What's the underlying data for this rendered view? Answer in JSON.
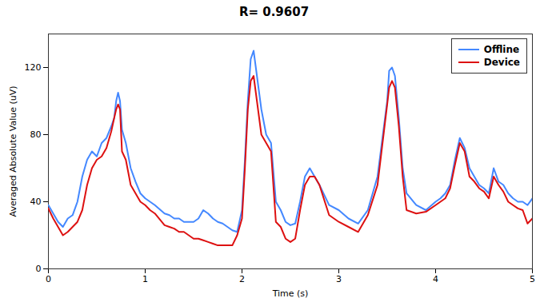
{
  "chart_data": {
    "type": "line",
    "title": "R= 0.9607",
    "xlabel": "Time (s)",
    "ylabel": "Averaged Absolute Value (uV)",
    "xlim": [
      0,
      5
    ],
    "ylim": [
      0,
      140
    ],
    "xticks": [
      0,
      1,
      2,
      3,
      4,
      5
    ],
    "yticks": [
      0,
      40,
      80,
      120
    ],
    "legend": "upper right",
    "x": [
      0.0,
      0.05,
      0.1,
      0.15,
      0.2,
      0.25,
      0.3,
      0.35,
      0.4,
      0.45,
      0.5,
      0.55,
      0.6,
      0.65,
      0.68,
      0.7,
      0.72,
      0.74,
      0.76,
      0.8,
      0.85,
      0.9,
      0.95,
      1.0,
      1.05,
      1.1,
      1.2,
      1.25,
      1.3,
      1.35,
      1.4,
      1.45,
      1.5,
      1.55,
      1.6,
      1.65,
      1.7,
      1.75,
      1.8,
      1.85,
      1.9,
      1.95,
      2.0,
      2.03,
      2.06,
      2.09,
      2.12,
      2.2,
      2.25,
      2.3,
      2.35,
      2.4,
      2.45,
      2.5,
      2.55,
      2.6,
      2.65,
      2.7,
      2.75,
      2.8,
      2.9,
      3.0,
      3.1,
      3.2,
      3.3,
      3.4,
      3.5,
      3.52,
      3.55,
      3.58,
      3.62,
      3.66,
      3.7,
      3.8,
      3.9,
      4.0,
      4.05,
      4.1,
      4.15,
      4.2,
      4.25,
      4.3,
      4.35,
      4.4,
      4.45,
      4.5,
      4.55,
      4.6,
      4.65,
      4.7,
      4.75,
      4.8,
      4.85,
      4.9,
      4.95,
      5.0
    ],
    "series": [
      {
        "name": "Offline",
        "color": "#4488FF",
        "values": [
          38,
          33,
          28,
          25,
          30,
          32,
          40,
          55,
          65,
          70,
          67,
          75,
          78,
          85,
          90,
          100,
          105,
          100,
          83,
          75,
          60,
          52,
          45,
          42,
          40,
          38,
          33,
          32,
          30,
          30,
          28,
          28,
          28,
          30,
          35,
          33,
          30,
          28,
          27,
          25,
          23,
          22,
          35,
          65,
          100,
          125,
          130,
          95,
          80,
          75,
          40,
          35,
          28,
          26,
          27,
          40,
          55,
          60,
          55,
          50,
          38,
          35,
          30,
          27,
          35,
          55,
          100,
          118,
          120,
          115,
          90,
          60,
          45,
          38,
          35,
          40,
          42,
          45,
          50,
          65,
          78,
          72,
          60,
          55,
          50,
          48,
          45,
          60,
          52,
          50,
          45,
          42,
          40,
          40,
          38,
          42
        ]
      },
      {
        "name": "Device",
        "color": "#DD1111",
        "values": [
          36,
          30,
          25,
          20,
          22,
          25,
          28,
          35,
          50,
          60,
          65,
          67,
          72,
          82,
          90,
          95,
          98,
          95,
          70,
          65,
          50,
          45,
          40,
          38,
          35,
          33,
          26,
          25,
          24,
          22,
          22,
          20,
          18,
          18,
          17,
          16,
          15,
          14,
          14,
          14,
          14,
          20,
          30,
          60,
          95,
          112,
          115,
          80,
          75,
          70,
          28,
          25,
          18,
          16,
          18,
          35,
          50,
          55,
          55,
          50,
          32,
          28,
          25,
          22,
          32,
          50,
          98,
          108,
          112,
          108,
          85,
          55,
          35,
          33,
          34,
          38,
          40,
          42,
          48,
          62,
          75,
          70,
          55,
          52,
          48,
          46,
          42,
          55,
          50,
          46,
          40,
          38,
          36,
          35,
          27,
          30
        ]
      }
    ]
  }
}
